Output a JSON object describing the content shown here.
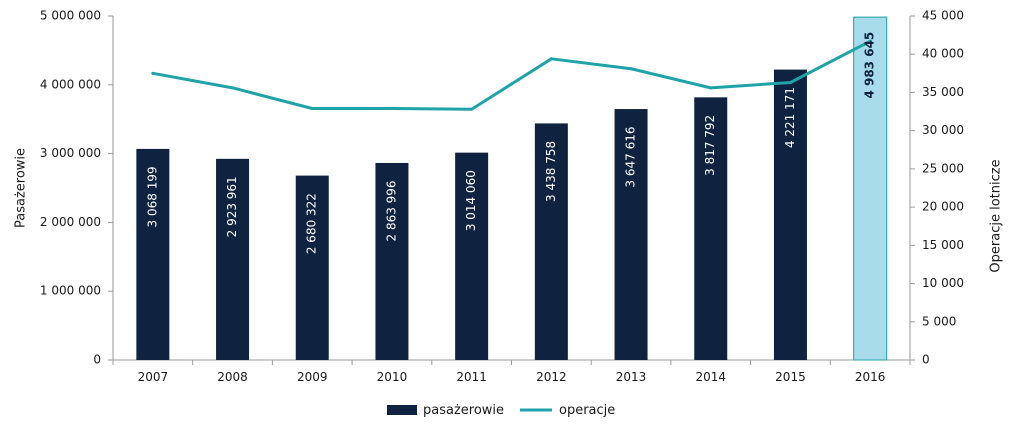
{
  "chart_data": {
    "type": "bar",
    "categories": [
      "2007",
      "2008",
      "2009",
      "2010",
      "2011",
      "2012",
      "2013",
      "2014",
      "2015",
      "2016"
    ],
    "series": [
      {
        "name": "pasażerowie",
        "kind": "bar",
        "axis": "left",
        "values": [
          3068199,
          2923961,
          2680322,
          2863996,
          3014060,
          3438758,
          3647616,
          3817792,
          4221171,
          4983645
        ],
        "labels": [
          "3 068 199",
          "2 923 961",
          "2 680 322",
          "2 863 996",
          "3 014 060",
          "3 438 758",
          "3 647 616",
          "3 817 792",
          "4 221 171",
          "4 983 645"
        ]
      },
      {
        "name": "operacje",
        "kind": "line",
        "axis": "right",
        "values": [
          37500,
          35600,
          32900,
          32900,
          32800,
          39400,
          38100,
          35600,
          36300,
          41700
        ]
      }
    ],
    "highlight_index": 9,
    "ylabel": "Pasażerowie",
    "y2label": "Operacje lotnicze",
    "ylim": [
      0,
      5000000
    ],
    "y2lim": [
      0,
      45000
    ],
    "yticks": [
      "0",
      "1 000 000",
      "2 000 000",
      "3 000 000",
      "4 000 000",
      "5 000 000"
    ],
    "y2ticks": [
      "0",
      "5 000",
      "10 000",
      "15 000",
      "20 000",
      "25 000",
      "30 000",
      "35 000",
      "40 000",
      "45 000"
    ],
    "legend_position": "bottom",
    "grid": false,
    "colors": {
      "bar": "#0f2340",
      "highlight_fill": "#a9dcea",
      "highlight_stroke": "#1fa3a8",
      "line": "#1fa3a8"
    }
  }
}
